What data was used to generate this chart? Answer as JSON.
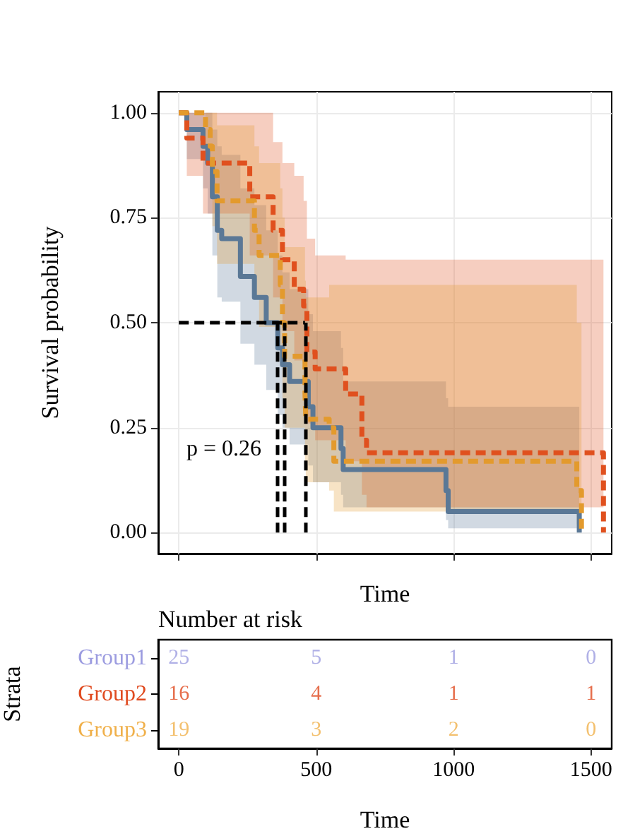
{
  "chart_data": [
    {
      "type": "step",
      "xlabel": "Time",
      "ylabel": "Survival probability",
      "xlim": [
        -75,
        1575
      ],
      "ylim": [
        -0.05,
        1.05
      ],
      "xticks": [
        {
          "value": 0,
          "label": null
        },
        {
          "value": 500,
          "label": null
        },
        {
          "value": 1000,
          "label": null
        },
        {
          "value": 1500,
          "label": null
        }
      ],
      "yticks": [
        {
          "value": 0,
          "label": "0.00"
        },
        {
          "value": 0.25,
          "label": "0.25"
        },
        {
          "value": 0.5,
          "label": "0.50"
        },
        {
          "value": 0.75,
          "label": "0.75"
        },
        {
          "value": 1,
          "label": "1.00"
        }
      ],
      "tick_labels": "y",
      "grid": true,
      "annotations": [
        "p = 0.26"
      ],
      "ref_lines": [
        {
          "axis": "y",
          "value": 0.5,
          "color": "#000000",
          "line_style": "dashed"
        },
        {
          "axis": "x",
          "value": 360,
          "color": "#000000",
          "line_style": "dashed"
        },
        {
          "axis": "x",
          "value": 386,
          "color": "#000000",
          "line_style": "dashed"
        },
        {
          "axis": "x",
          "value": 459,
          "color": "#000000",
          "line_style": "dashed"
        }
      ],
      "series": [
        {
          "color": "#5a7896",
          "line_style": "solid",
          "x": [
            0,
            29,
            88,
            105,
            122,
            140,
            156,
            224,
            275,
            318,
            360,
            377,
            403,
            471,
            488,
            590,
            598,
            972,
            980,
            1457
          ],
          "values": [
            1,
            0.96,
            0.92,
            0.88,
            0.8,
            0.72,
            0.7,
            0.61,
            0.56,
            0.5,
            0.44,
            0.4,
            0.36,
            0.3,
            0.25,
            0.2,
            0.15,
            0.1,
            0.05,
            0
          ],
          "lower": [
            1,
            0.89,
            0.82,
            0.76,
            0.66,
            0.56,
            0.55,
            0.45,
            0.4,
            0.34,
            0.28,
            0.25,
            0.21,
            0.16,
            0.12,
            0.09,
            0.06,
            0.03,
            0.01,
            0
          ],
          "upper": [
            1,
            1,
            1,
            1,
            0.96,
            0.92,
            0.9,
            0.82,
            0.78,
            0.72,
            0.66,
            0.62,
            0.58,
            0.52,
            0.48,
            0.44,
            0.36,
            0.32,
            0.3,
            0
          ]
        },
        {
          "color": "#e0501e",
          "line_style": "dashed",
          "x": [
            0,
            29,
            88,
            258,
            343,
            377,
            420,
            454,
            466,
            496,
            607,
            666,
            683,
            1545
          ],
          "values": [
            1,
            0.94,
            0.88,
            0.8,
            0.72,
            0.65,
            0.58,
            0.54,
            0.43,
            0.39,
            0.33,
            0.22,
            0.19,
            0
          ],
          "lower": [
            1,
            0.85,
            0.76,
            0.66,
            0.56,
            0.48,
            0.41,
            0.37,
            0.26,
            0.22,
            0.17,
            0.09,
            0.06,
            0
          ],
          "upper": [
            1,
            1,
            1,
            1,
            0.93,
            0.88,
            0.85,
            0.79,
            0.7,
            0.66,
            0.65,
            0.65,
            0.65,
            0
          ]
        },
        {
          "color": "#e39a2d",
          "line_style": "dashed",
          "x": [
            0,
            97,
            114,
            122,
            139,
            275,
            292,
            369,
            377,
            385,
            459,
            462,
            547,
            564,
            1448,
            1465
          ],
          "values": [
            1,
            0.96,
            0.92,
            0.86,
            0.79,
            0.72,
            0.66,
            0.59,
            0.5,
            0.42,
            0.33,
            0.27,
            0.25,
            0.17,
            0.1,
            0
          ],
          "lower": [
            1,
            0.88,
            0.81,
            0.73,
            0.64,
            0.56,
            0.49,
            0.42,
            0.32,
            0.25,
            0.17,
            0.12,
            0.1,
            0.05,
            0.02,
            0
          ],
          "upper": [
            1,
            1,
            1,
            1,
            0.97,
            0.92,
            0.88,
            0.82,
            0.75,
            0.68,
            0.6,
            0.56,
            0.59,
            0.59,
            0.5,
            0
          ]
        }
      ]
    },
    {
      "type": "heatmap",
      "title": "Number at risk",
      "xlabel": "Time",
      "ylabel": "Strata",
      "data_labels": true,
      "x": [
        0,
        500,
        1000,
        1500
      ],
      "xlim": [
        -75,
        1575
      ],
      "xticks": [
        0,
        500,
        1000,
        1500
      ],
      "y_categories": [
        "Group1",
        "Group2",
        "Group3"
      ],
      "colors": [
        "#9c9ce0",
        "#e04a1f",
        "#f0b04a"
      ],
      "cells": [
        [
          25,
          5,
          1,
          0
        ],
        [
          16,
          4,
          1,
          1
        ],
        [
          19,
          3,
          2,
          0
        ]
      ]
    }
  ]
}
